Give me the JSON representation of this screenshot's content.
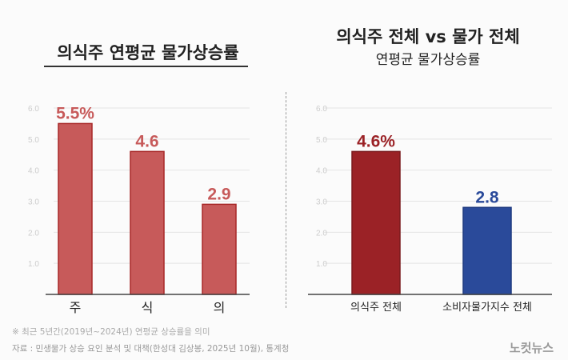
{
  "chart_data": [
    {
      "type": "bar",
      "title": "의식주 연평균 물가상승률",
      "categories": [
        "주",
        "식",
        "의"
      ],
      "values": [
        5.5,
        4.6,
        2.9
      ],
      "value_labels": [
        "5.5%",
        "4.6",
        "2.9"
      ],
      "yticks": [
        "1.0",
        "2.0",
        "3.0",
        "4.0",
        "5.0",
        "6.0"
      ],
      "ylim": [
        0,
        6
      ],
      "grid": true,
      "colors": [
        "#c75a5a"
      ]
    },
    {
      "type": "bar",
      "title": "의식주 전체 vs 물가 전체",
      "subtitle": "연평균 물가상승률",
      "categories": [
        "의식주 전체",
        "소비자물가지수 전체"
      ],
      "values": [
        4.6,
        2.8
      ],
      "value_labels": [
        "4.6%",
        "2.8"
      ],
      "yticks": [
        "1.0",
        "2.0",
        "3.0",
        "4.0",
        "5.0",
        "6.0"
      ],
      "ylim": [
        0,
        6
      ],
      "grid": true,
      "colors": [
        "#9b2226",
        "#2a4a9a"
      ]
    }
  ],
  "footer": {
    "note": "※ 최근 5년간(2019년~2024년) 연평균 상승률을 의미",
    "source": "자료 : 민생물가 상승 요인 분석 및 대책(한성대 김상봉, 2025년 10월), 통계청",
    "logo": "노컷뉴스"
  }
}
